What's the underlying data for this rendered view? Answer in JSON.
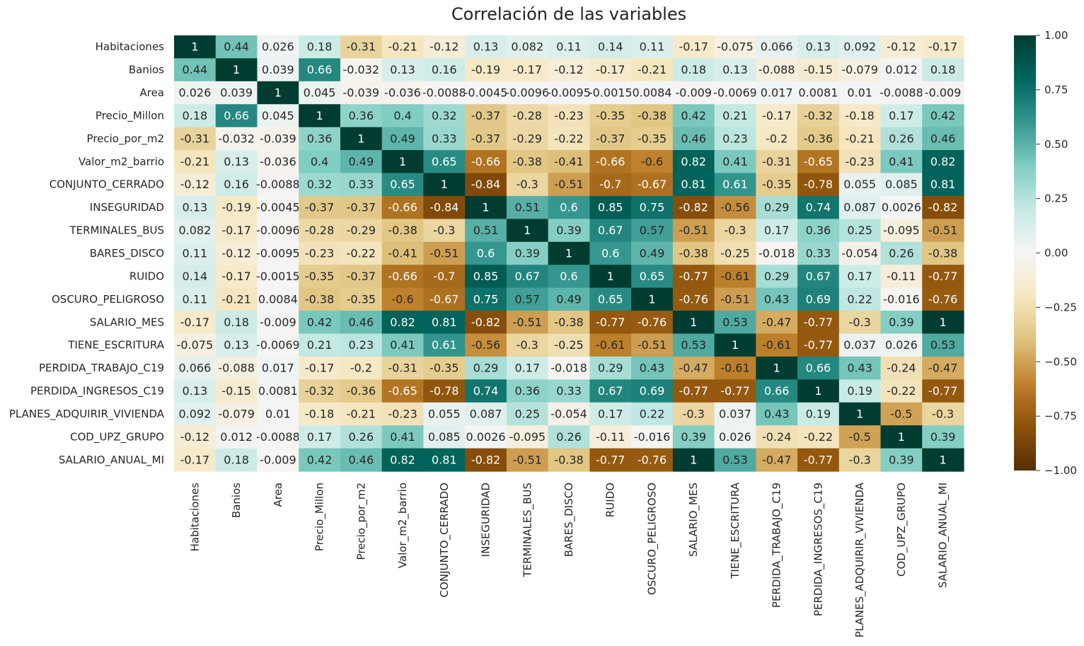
{
  "chart_data": {
    "type": "heatmap",
    "title": "Correlación de las variables",
    "xlabel": "",
    "ylabel": "",
    "variables": [
      "Habitaciones",
      "Banios",
      "Area",
      "Precio_Millon",
      "Precio_por_m2",
      "Valor_m2_barrio",
      "CONJUNTO_CERRADO",
      "INSEGURIDAD",
      "TERMINALES_BUS",
      "BARES_DISCO",
      "RUIDO",
      "OSCURO_PELIGROSO",
      "SALARIO_MES",
      "TIENE_ESCRITURA",
      "PERDIDA_TRABAJO_C19",
      "PERDIDA_INGRESOS_C19",
      "PLANES_ADQUIRIR_VIVIENDA",
      "COD_UPZ_GRUPO",
      "SALARIO_ANUAL_MI"
    ],
    "matrix": [
      [
        1,
        0.44,
        0.026,
        0.18,
        -0.31,
        -0.21,
        -0.12,
        0.13,
        0.082,
        0.11,
        0.14,
        0.11,
        -0.17,
        -0.075,
        0.066,
        0.13,
        0.092,
        -0.12,
        -0.17
      ],
      [
        0.44,
        1,
        0.039,
        0.66,
        -0.032,
        0.13,
        0.16,
        -0.19,
        -0.17,
        -0.12,
        -0.17,
        -0.21,
        0.18,
        0.13,
        -0.088,
        -0.15,
        -0.079,
        0.012,
        0.18
      ],
      [
        0.026,
        0.039,
        1,
        0.045,
        -0.039,
        -0.036,
        -0.0088,
        -0.0045,
        -0.0096,
        -0.0095,
        -0.0015,
        0.0084,
        -0.009,
        -0.0069,
        0.017,
        0.0081,
        0.01,
        -0.0088,
        -0.009
      ],
      [
        0.18,
        0.66,
        0.045,
        1,
        0.36,
        0.4,
        0.32,
        -0.37,
        -0.28,
        -0.23,
        -0.35,
        -0.38,
        0.42,
        0.21,
        -0.17,
        -0.32,
        -0.18,
        0.17,
        0.42
      ],
      [
        -0.31,
        -0.032,
        -0.039,
        0.36,
        1,
        0.49,
        0.33,
        -0.37,
        -0.29,
        -0.22,
        -0.37,
        -0.35,
        0.46,
        0.23,
        -0.2,
        -0.36,
        -0.21,
        0.26,
        0.46
      ],
      [
        -0.21,
        0.13,
        -0.036,
        0.4,
        0.49,
        1,
        0.65,
        -0.66,
        -0.38,
        -0.41,
        -0.66,
        -0.6,
        0.82,
        0.41,
        -0.31,
        -0.65,
        -0.23,
        0.41,
        0.82
      ],
      [
        -0.12,
        0.16,
        -0.0088,
        0.32,
        0.33,
        0.65,
        1,
        -0.84,
        -0.3,
        -0.51,
        -0.7,
        -0.67,
        0.81,
        0.61,
        -0.35,
        -0.78,
        0.055,
        0.085,
        0.81
      ],
      [
        0.13,
        -0.19,
        -0.0045,
        -0.37,
        -0.37,
        -0.66,
        -0.84,
        1,
        0.51,
        0.6,
        0.85,
        0.75,
        -0.82,
        -0.56,
        0.29,
        0.74,
        0.087,
        0.0026,
        -0.82
      ],
      [
        0.082,
        -0.17,
        -0.0096,
        -0.28,
        -0.29,
        -0.38,
        -0.3,
        0.51,
        1,
        0.39,
        0.67,
        0.57,
        -0.51,
        -0.3,
        0.17,
        0.36,
        0.25,
        -0.095,
        -0.51
      ],
      [
        0.11,
        -0.12,
        -0.0095,
        -0.23,
        -0.22,
        -0.41,
        -0.51,
        0.6,
        0.39,
        1,
        0.6,
        0.49,
        -0.38,
        -0.25,
        -0.018,
        0.33,
        -0.054,
        0.26,
        -0.38
      ],
      [
        0.14,
        -0.17,
        -0.0015,
        -0.35,
        -0.37,
        -0.66,
        -0.7,
        0.85,
        0.67,
        0.6,
        1,
        0.65,
        -0.77,
        -0.61,
        0.29,
        0.67,
        0.17,
        -0.11,
        -0.77
      ],
      [
        0.11,
        -0.21,
        0.0084,
        -0.38,
        -0.35,
        -0.6,
        -0.67,
        0.75,
        0.57,
        0.49,
        0.65,
        1,
        -0.76,
        -0.51,
        0.43,
        0.69,
        0.22,
        -0.016,
        -0.76
      ],
      [
        -0.17,
        0.18,
        -0.009,
        0.42,
        0.46,
        0.82,
        0.81,
        -0.82,
        -0.51,
        -0.38,
        -0.77,
        -0.76,
        1,
        0.53,
        -0.47,
        -0.77,
        -0.3,
        0.39,
        1
      ],
      [
        -0.075,
        0.13,
        -0.0069,
        0.21,
        0.23,
        0.41,
        0.61,
        -0.56,
        -0.3,
        -0.25,
        -0.61,
        -0.51,
        0.53,
        1,
        -0.61,
        -0.77,
        0.037,
        0.026,
        0.53
      ],
      [
        0.066,
        -0.088,
        0.017,
        -0.17,
        -0.2,
        -0.31,
        -0.35,
        0.29,
        0.17,
        -0.018,
        0.29,
        0.43,
        -0.47,
        -0.61,
        1,
        0.66,
        0.43,
        -0.24,
        -0.47
      ],
      [
        0.13,
        -0.15,
        0.0081,
        -0.32,
        -0.36,
        -0.65,
        -0.78,
        0.74,
        0.36,
        0.33,
        0.67,
        0.69,
        -0.77,
        -0.77,
        0.66,
        1,
        0.19,
        -0.22,
        -0.77
      ],
      [
        0.092,
        -0.079,
        0.01,
        -0.18,
        -0.21,
        -0.23,
        0.055,
        0.087,
        0.25,
        -0.054,
        0.17,
        0.22,
        -0.3,
        0.037,
        0.43,
        0.19,
        1,
        -0.5,
        -0.3
      ],
      [
        -0.12,
        0.012,
        -0.0088,
        0.17,
        0.26,
        0.41,
        0.085,
        0.0026,
        -0.095,
        0.26,
        -0.11,
        -0.016,
        0.39,
        0.026,
        -0.24,
        -0.22,
        -0.5,
        1,
        0.39
      ],
      [
        -0.17,
        0.18,
        -0.009,
        0.42,
        0.46,
        0.82,
        0.81,
        -0.82,
        -0.51,
        -0.38,
        -0.77,
        -0.76,
        1,
        0.53,
        -0.47,
        -0.77,
        -0.3,
        0.39,
        1
      ]
    ],
    "colormap": "BrBG",
    "vmin": -1.0,
    "vmax": 1.0,
    "colorbar_ticks": [
      "1.00",
      "0.75",
      "0.50",
      "0.25",
      "0.00",
      "−0.25",
      "−0.50",
      "−0.75",
      "−1.00"
    ],
    "colorbar_tick_values": [
      1.0,
      0.75,
      0.5,
      0.25,
      0.0,
      -0.25,
      -0.5,
      -0.75,
      -1.0
    ],
    "annotations": true,
    "grid": false
  }
}
